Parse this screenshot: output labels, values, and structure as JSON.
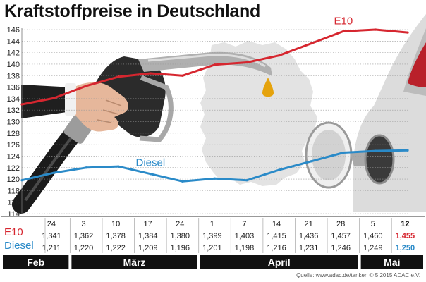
{
  "title": "Kraftstoffpreise in Deutschland",
  "source": "Quelle: www.adac.de/tanken  © 5.2015  ADAC e.V.",
  "colors": {
    "e10": "#d6262f",
    "diesel": "#2a8ac8",
    "grid": "#9a9a9a",
    "map": "#e2e2e2",
    "month_bar": "#111111",
    "text": "#222222"
  },
  "table": {
    "e10_label": "E10",
    "diesel_label": "Diesel"
  },
  "chart_data": {
    "type": "line",
    "title": "Kraftstoffpreise in Deutschland",
    "ylim": [
      114,
      146
    ],
    "y_ticks": [
      114,
      116,
      118,
      120,
      122,
      124,
      126,
      128,
      130,
      132,
      134,
      136,
      138,
      140,
      142,
      144,
      146
    ],
    "grid": true,
    "legend": "inline labels on lines",
    "dates": [
      "",
      "24",
      "3",
      "10",
      "17",
      "24",
      "1",
      "7",
      "14",
      "21",
      "28",
      "5",
      "12"
    ],
    "series": [
      {
        "name": "E10",
        "values": [
          133.0,
          134.1,
          136.2,
          137.8,
          138.4,
          138.0,
          139.9,
          140.3,
          141.5,
          143.6,
          145.7,
          146.0,
          145.5
        ]
      },
      {
        "name": "Diesel",
        "values": [
          119.8,
          121.1,
          122.0,
          122.2,
          120.9,
          119.6,
          120.1,
          119.8,
          121.6,
          123.1,
          124.6,
          124.9,
          125.0
        ]
      }
    ],
    "table_e10": [
      "",
      "1,341",
      "1,362",
      "1,378",
      "1,384",
      "1,380",
      "1,399",
      "1,403",
      "1,415",
      "1,436",
      "1,457",
      "1,460",
      "1,455"
    ],
    "table_diesel": [
      "",
      "1,211",
      "1,220",
      "1,222",
      "1,209",
      "1,196",
      "1,201",
      "1,198",
      "1,216",
      "1,231",
      "1,246",
      "1,249",
      "1,250"
    ],
    "highlight_last": true,
    "months": [
      {
        "label": "Feb",
        "from": 0,
        "to": 1
      },
      {
        "label": "März",
        "from": 2,
        "to": 5
      },
      {
        "label": "April",
        "from": 6,
        "to": 10
      },
      {
        "label": "Mai",
        "from": 11,
        "to": 12
      }
    ]
  }
}
